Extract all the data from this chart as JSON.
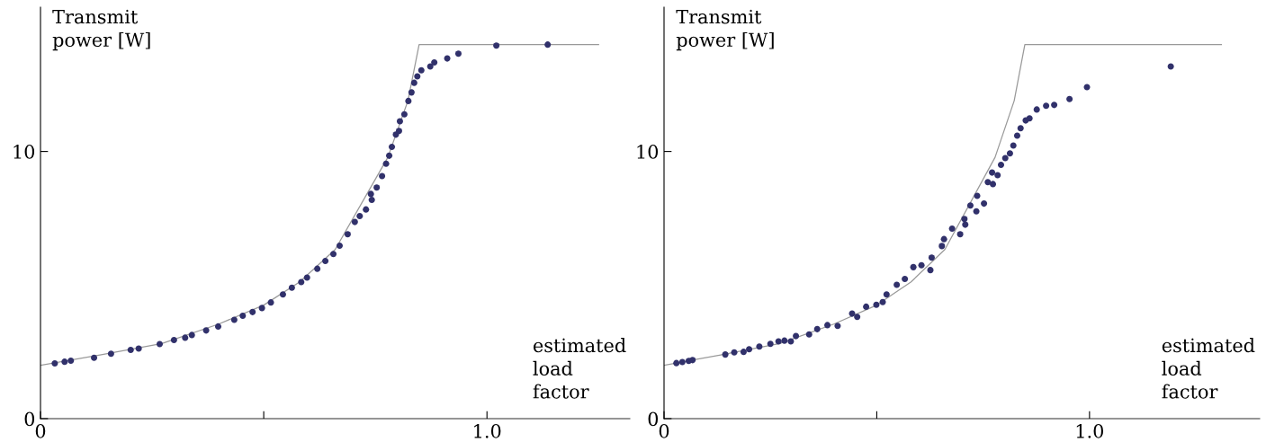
{
  "chart_data": [
    {
      "type": "scatter",
      "ylabel": "Transmit\npower [W]",
      "xlabel": "estimated\nload\nfactor",
      "xlim": [
        0,
        1.32
      ],
      "ylim": [
        0,
        15.4
      ],
      "xticks": [
        {
          "value": 0,
          "label": "0"
        },
        {
          "value": 0.5,
          "label": null
        },
        {
          "value": 1.0,
          "label": "1.0"
        }
      ],
      "yticks": [
        0,
        10
      ],
      "grid": false,
      "legend": false,
      "series": [
        {
          "type": "line",
          "marker": "none",
          "color": "#999999",
          "x": [
            0,
            0.136,
            0.272,
            0.399,
            0.5,
            0.58,
            0.66,
            0.778,
            0.823,
            0.848,
            1.25
          ],
          "values": [
            2.0,
            2.39,
            2.81,
            3.54,
            4.25,
            5.11,
            6.33,
            9.78,
            11.9,
            14.0,
            14.0
          ]
        },
        {
          "type": "scatter",
          "marker": "circle",
          "color": "#31316b",
          "x": [
            0.032,
            0.054,
            0.068,
            0.12,
            0.158,
            0.202,
            0.22,
            0.267,
            0.299,
            0.324,
            0.339,
            0.371,
            0.398,
            0.434,
            0.453,
            0.475,
            0.496,
            0.516,
            0.543,
            0.563,
            0.584,
            0.597,
            0.62,
            0.638,
            0.656,
            0.67,
            0.688,
            0.704,
            0.715,
            0.729,
            0.742,
            0.753,
            0.74,
            0.765,
            0.774,
            0.781,
            0.787,
            0.796,
            0.803,
            0.805,
            0.815,
            0.824,
            0.831,
            0.837,
            0.844,
            0.853,
            0.873,
            0.882,
            0.911,
            0.936,
            1.021,
            1.136
          ],
          "values": [
            2.07,
            2.13,
            2.17,
            2.28,
            2.43,
            2.57,
            2.62,
            2.79,
            2.94,
            3.03,
            3.13,
            3.3,
            3.45,
            3.7,
            3.85,
            3.99,
            4.14,
            4.35,
            4.65,
            4.9,
            5.11,
            5.28,
            5.61,
            5.9,
            6.16,
            6.47,
            6.9,
            7.36,
            7.58,
            7.83,
            8.19,
            8.65,
            8.41,
            9.08,
            9.54,
            9.84,
            10.17,
            10.63,
            10.77,
            11.13,
            11.39,
            11.89,
            12.21,
            12.57,
            12.81,
            13.04,
            13.18,
            13.33,
            13.48,
            13.66,
            13.96,
            14.0
          ]
        }
      ]
    },
    {
      "type": "scatter",
      "ylabel": "Transmit\npower [W]",
      "xlabel": "estimated\nload\nfactor",
      "xlim": [
        0,
        1.4
      ],
      "ylim": [
        0,
        15.4
      ],
      "xticks": [
        {
          "value": 0,
          "label": "0"
        },
        {
          "value": 0.5,
          "label": null
        },
        {
          "value": 1.0,
          "label": "1.0"
        }
      ],
      "yticks": [
        0,
        10
      ],
      "grid": false,
      "legend": false,
      "series": [
        {
          "type": "line",
          "marker": "none",
          "color": "#999999",
          "x": [
            0,
            0.136,
            0.272,
            0.399,
            0.5,
            0.58,
            0.66,
            0.778,
            0.823,
            0.848,
            1.31
          ],
          "values": [
            2.0,
            2.39,
            2.81,
            3.54,
            4.25,
            5.11,
            6.33,
            9.78,
            11.9,
            14.0,
            14.0
          ]
        },
        {
          "type": "scatter",
          "marker": "circle",
          "color": "#31316b",
          "x": [
            0.029,
            0.043,
            0.058,
            0.067,
            0.144,
            0.165,
            0.187,
            0.2,
            0.224,
            0.25,
            0.269,
            0.283,
            0.298,
            0.31,
            0.341,
            0.36,
            0.384,
            0.408,
            0.442,
            0.454,
            0.475,
            0.499,
            0.514,
            0.523,
            0.547,
            0.566,
            0.586,
            0.605,
            0.626,
            0.629,
            0.653,
            0.658,
            0.677,
            0.696,
            0.706,
            0.708,
            0.72,
            0.734,
            0.736,
            0.752,
            0.761,
            0.773,
            0.771,
            0.784,
            0.792,
            0.802,
            0.813,
            0.821,
            0.83,
            0.838,
            0.85,
            0.859,
            0.876,
            0.898,
            0.917,
            0.953,
            0.994,
            1.191
          ],
          "values": [
            2.08,
            2.12,
            2.16,
            2.19,
            2.4,
            2.48,
            2.5,
            2.6,
            2.7,
            2.8,
            2.89,
            2.92,
            2.89,
            3.09,
            3.15,
            3.35,
            3.5,
            3.47,
            3.93,
            3.81,
            4.19,
            4.26,
            4.36,
            4.65,
            5.01,
            5.23,
            5.67,
            5.74,
            5.56,
            6.03,
            6.46,
            6.72,
            7.11,
            6.9,
            7.47,
            7.26,
            7.98,
            7.76,
            8.34,
            8.05,
            8.85,
            8.78,
            9.21,
            9.11,
            9.5,
            9.75,
            9.93,
            10.22,
            10.59,
            10.87,
            11.16,
            11.24,
            11.57,
            11.71,
            11.74,
            11.96,
            12.41,
            13.18
          ]
        }
      ]
    }
  ]
}
